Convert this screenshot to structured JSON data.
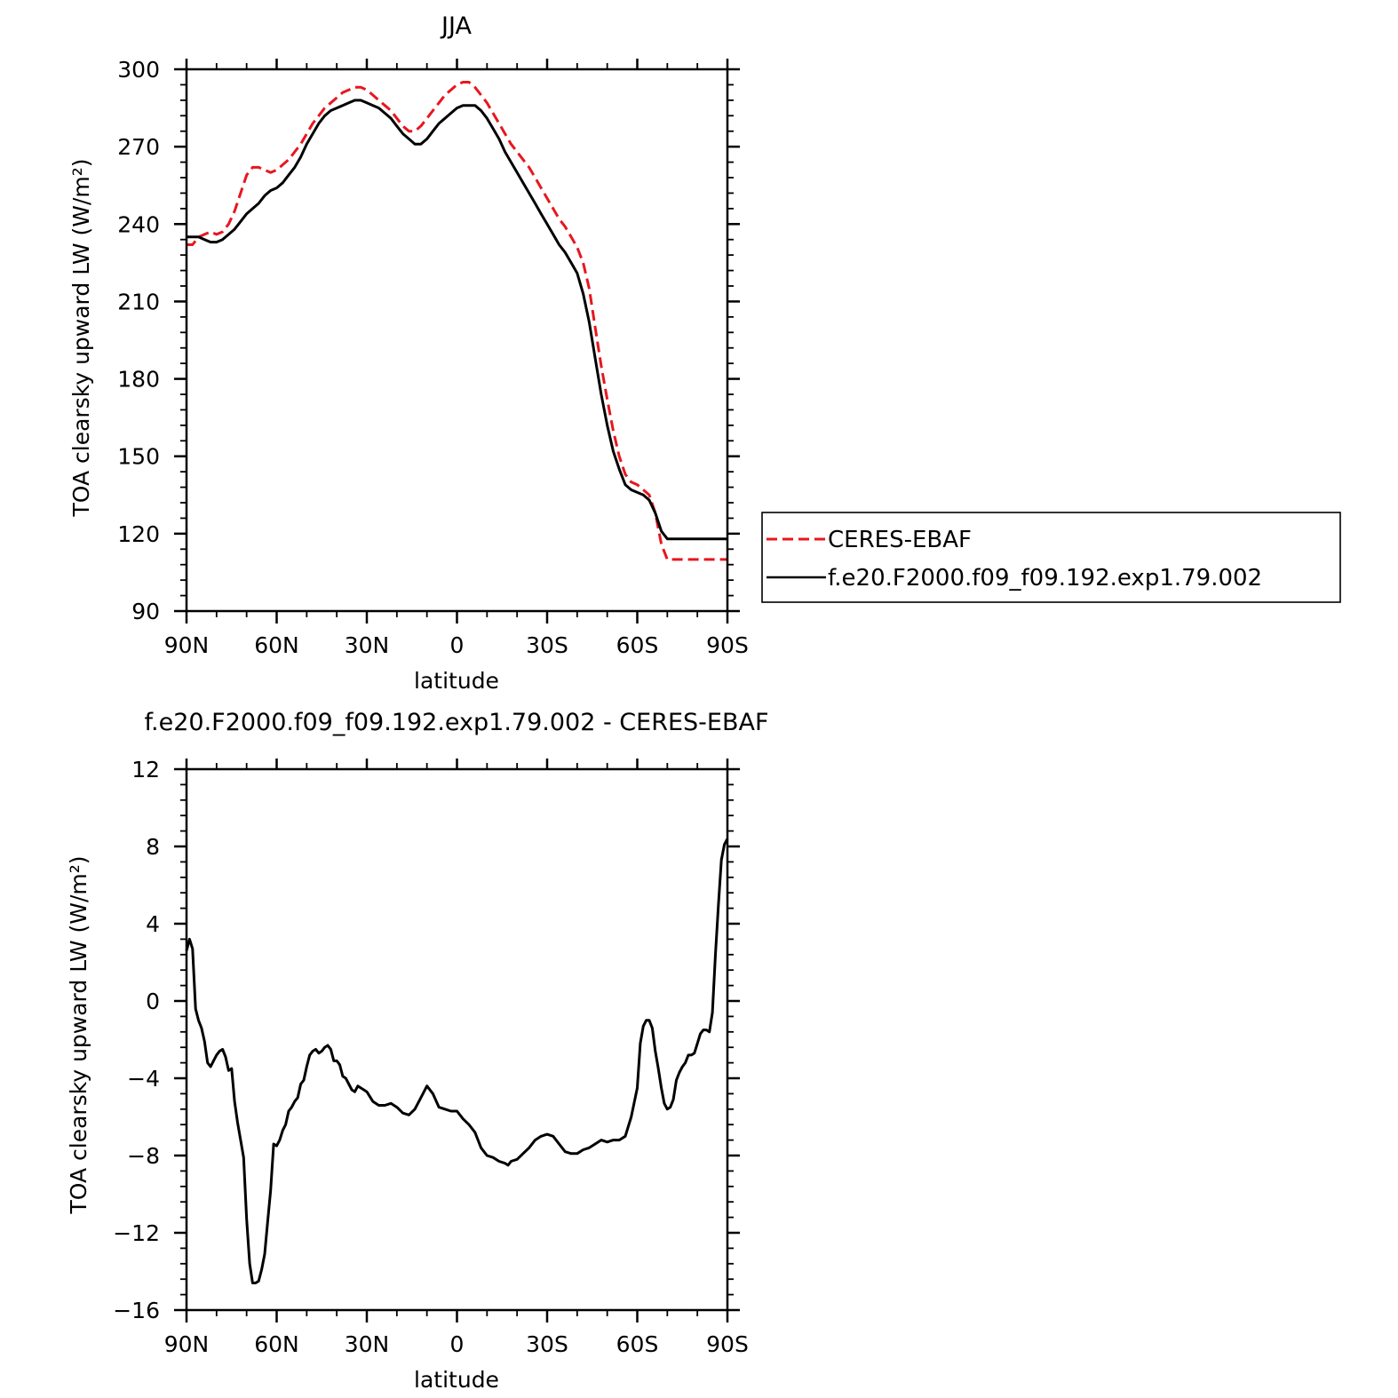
{
  "chart_data": [
    {
      "type": "line",
      "title": "JJA",
      "xlabel": "latitude",
      "ylabel": "TOA clearsky upward LW (W/m²)",
      "xlim": [
        90,
        -90
      ],
      "ylim": [
        90,
        300
      ],
      "xticks": [
        90,
        60,
        30,
        0,
        -30,
        -60,
        -90
      ],
      "xtick_labels": [
        "90N",
        "60N",
        "30N",
        "0",
        "30S",
        "60S",
        "90S"
      ],
      "yticks": [
        90,
        120,
        150,
        180,
        210,
        240,
        270,
        300
      ],
      "ytick_labels": [
        "90",
        "120",
        "150",
        "180",
        "210",
        "240",
        "270",
        "300"
      ],
      "legend_position": "right",
      "series": [
        {
          "name": "CERES-EBAF",
          "color": "#e8161e",
          "dash": "dashed",
          "x": [
            90,
            88,
            86,
            84,
            82,
            80,
            78,
            76,
            74,
            72,
            70,
            68,
            66,
            64,
            62,
            60,
            58,
            56,
            54,
            52,
            50,
            48,
            46,
            44,
            42,
            40,
            38,
            36,
            34,
            32,
            30,
            28,
            26,
            24,
            22,
            20,
            18,
            16,
            14,
            12,
            10,
            8,
            6,
            4,
            2,
            0,
            -2,
            -4,
            -6,
            -8,
            -10,
            -12,
            -14,
            -16,
            -18,
            -20,
            -22,
            -24,
            -26,
            -28,
            -30,
            -32,
            -34,
            -36,
            -38,
            -40,
            -42,
            -44,
            -46,
            -48,
            -50,
            -52,
            -54,
            -56,
            -58,
            -60,
            -62,
            -64,
            -66,
            -68,
            -70,
            -72,
            -74,
            -76,
            -78,
            -80,
            -82,
            -84,
            -86,
            -88,
            -90
          ],
          "values": [
            232,
            232,
            235,
            236,
            237,
            236,
            237,
            240,
            245,
            252,
            259,
            262,
            262,
            261,
            260,
            261,
            263,
            265,
            268,
            271,
            275,
            279,
            282,
            285,
            287,
            289,
            291,
            292,
            293,
            293,
            292,
            290,
            288,
            286,
            284,
            281,
            278,
            276,
            276,
            278,
            281,
            284,
            287,
            290,
            292,
            294,
            295,
            295,
            293,
            290,
            287,
            283,
            279,
            275,
            271,
            268,
            265,
            262,
            258,
            254,
            250,
            246,
            242,
            239,
            235,
            231,
            225,
            215,
            200,
            185,
            172,
            160,
            150,
            143,
            140,
            139,
            137,
            135,
            128,
            116,
            110,
            110,
            110,
            110,
            110,
            110,
            110,
            110,
            110,
            110,
            110
          ]
        },
        {
          "name": "f.e20.F2000.f09_f09.192.exp1.79.002",
          "color": "#000000",
          "dash": "solid",
          "x": [
            90,
            88,
            86,
            84,
            82,
            80,
            78,
            76,
            74,
            72,
            70,
            68,
            66,
            64,
            62,
            60,
            58,
            56,
            54,
            52,
            50,
            48,
            46,
            44,
            42,
            40,
            38,
            36,
            34,
            32,
            30,
            28,
            26,
            24,
            22,
            20,
            18,
            16,
            14,
            12,
            10,
            8,
            6,
            4,
            2,
            0,
            -2,
            -4,
            -6,
            -8,
            -10,
            -12,
            -14,
            -16,
            -18,
            -20,
            -22,
            -24,
            -26,
            -28,
            -30,
            -32,
            -34,
            -36,
            -38,
            -40,
            -42,
            -44,
            -46,
            -48,
            -50,
            -52,
            -54,
            -56,
            -58,
            -60,
            -62,
            -64,
            -66,
            -68,
            -70,
            -72,
            -74,
            -76,
            -78,
            -80,
            -82,
            -84,
            -86,
            -88,
            -90
          ],
          "values": [
            235,
            235,
            235,
            234,
            233,
            233,
            234,
            236,
            238,
            241,
            244,
            246,
            248,
            251,
            253,
            254,
            256,
            259,
            262,
            266,
            271,
            275,
            279,
            282,
            284,
            285,
            286,
            287,
            288,
            288,
            287,
            286,
            285,
            283,
            281,
            278,
            275,
            273,
            271,
            271,
            273,
            276,
            279,
            281,
            283,
            285,
            286,
            286,
            286,
            284,
            281,
            277,
            273,
            268,
            264,
            260,
            256,
            252,
            248,
            244,
            240,
            236,
            232,
            229,
            225,
            221,
            213,
            202,
            188,
            174,
            162,
            152,
            145,
            139,
            137,
            136,
            135,
            133,
            128,
            121,
            118,
            118,
            118,
            118,
            118,
            118,
            118,
            118,
            118,
            118,
            118
          ]
        }
      ]
    },
    {
      "type": "line",
      "title": "f.e20.F2000.f09_f09.192.exp1.79.002 - CERES-EBAF",
      "xlabel": "latitude",
      "ylabel": "TOA clearsky upward LW (W/m²)",
      "xlim": [
        90,
        -90
      ],
      "ylim": [
        -16,
        12
      ],
      "xticks": [
        90,
        60,
        30,
        0,
        -30,
        -60,
        -90
      ],
      "xtick_labels": [
        "90N",
        "60N",
        "30N",
        "0",
        "30S",
        "60S",
        "90S"
      ],
      "yticks": [
        -16,
        -12,
        -8,
        -4,
        0,
        4,
        8,
        12
      ],
      "ytick_labels": [
        "−16",
        "−12",
        "−8",
        "−4",
        "0",
        "4",
        "8",
        "12"
      ],
      "series": [
        {
          "color": "#000000",
          "dash": "solid",
          "x": [
            90,
            89,
            88,
            87,
            86,
            85,
            84,
            83,
            82,
            81,
            80,
            79,
            78,
            77,
            76,
            75,
            74,
            73,
            72,
            71,
            70,
            69,
            68,
            67,
            66,
            65,
            64,
            63,
            62,
            61,
            60,
            59,
            58,
            57,
            56,
            55,
            54,
            53,
            52,
            51,
            50,
            49,
            48,
            47,
            46,
            45,
            44,
            43,
            42,
            41,
            40,
            39,
            38,
            37,
            36,
            35,
            34,
            33,
            32,
            31,
            30,
            28,
            26,
            24,
            22,
            20,
            18,
            16,
            14,
            12,
            10,
            8,
            6,
            4,
            2,
            0,
            -2,
            -4,
            -6,
            -8,
            -10,
            -12,
            -14,
            -16,
            -17,
            -18,
            -20,
            -22,
            -24,
            -26,
            -28,
            -30,
            -32,
            -34,
            -36,
            -38,
            -40,
            -42,
            -44,
            -46,
            -48,
            -50,
            -52,
            -54,
            -56,
            -58,
            -60,
            -61,
            -62,
            -63,
            -64,
            -65,
            -66,
            -67,
            -68,
            -69,
            -70,
            -71,
            -72,
            -73,
            -74,
            -75,
            -76,
            -77,
            -78,
            -79,
            -80,
            -81,
            -82,
            -83,
            -84,
            -85,
            -86,
            -87,
            -88,
            -89,
            -90
          ],
          "values": [
            2.6,
            3.2,
            2.7,
            -0.4,
            -1.0,
            -1.4,
            -2.1,
            -3.2,
            -3.4,
            -3.1,
            -2.8,
            -2.6,
            -2.5,
            -2.9,
            -3.6,
            -3.5,
            -5.2,
            -6.3,
            -7.2,
            -8.1,
            -11.3,
            -13.6,
            -14.6,
            -14.6,
            -14.5,
            -13.9,
            -13.1,
            -11.4,
            -9.8,
            -7.4,
            -7.5,
            -7.2,
            -6.7,
            -6.4,
            -5.7,
            -5.5,
            -5.2,
            -5.0,
            -4.3,
            -4.1,
            -3.4,
            -2.8,
            -2.6,
            -2.5,
            -2.7,
            -2.6,
            -2.4,
            -2.3,
            -2.5,
            -3.1,
            -3.1,
            -3.3,
            -3.9,
            -4.0,
            -4.3,
            -4.6,
            -4.7,
            -4.4,
            -4.5,
            -4.6,
            -4.7,
            -5.2,
            -5.4,
            -5.4,
            -5.3,
            -5.5,
            -5.8,
            -5.9,
            -5.6,
            -5.0,
            -4.4,
            -4.8,
            -5.5,
            -5.6,
            -5.7,
            -5.7,
            -6.1,
            -6.4,
            -6.8,
            -7.6,
            -8.0,
            -8.1,
            -8.3,
            -8.4,
            -8.5,
            -8.3,
            -8.2,
            -7.9,
            -7.6,
            -7.2,
            -7.0,
            -6.9,
            -7.0,
            -7.4,
            -7.8,
            -7.9,
            -7.9,
            -7.7,
            -7.6,
            -7.4,
            -7.2,
            -7.3,
            -7.2,
            -7.2,
            -7.0,
            -6.0,
            -4.5,
            -2.2,
            -1.3,
            -1.0,
            -1.0,
            -1.4,
            -2.6,
            -3.5,
            -4.5,
            -5.3,
            -5.6,
            -5.5,
            -5.1,
            -4.1,
            -3.7,
            -3.4,
            -3.2,
            -2.8,
            -2.8,
            -2.7,
            -2.2,
            -1.7,
            -1.5,
            -1.5,
            -1.6,
            -0.6,
            2.4,
            5.0,
            7.3,
            8.1,
            8.4
          ]
        }
      ]
    }
  ]
}
